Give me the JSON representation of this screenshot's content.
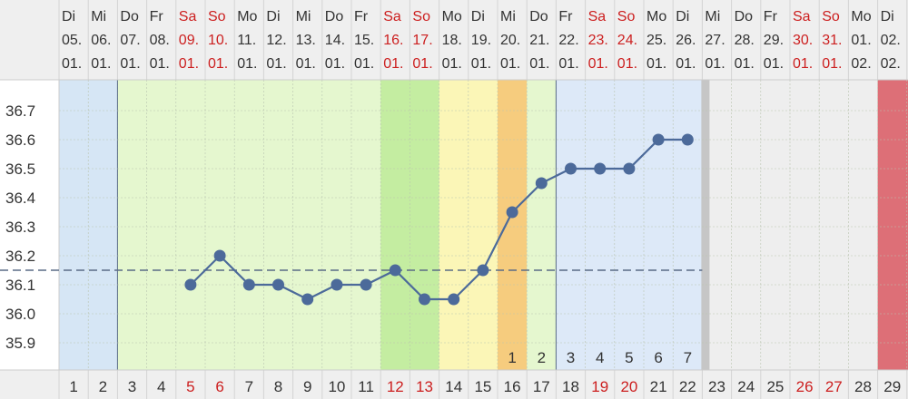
{
  "chart_data": {
    "type": "line",
    "title": "",
    "xlabel": "",
    "ylabel": "",
    "ylim": [
      35.8,
      36.85
    ],
    "yticks": [
      "36.7",
      "36.6",
      "36.5",
      "36.4",
      "36.3",
      "36.2",
      "36.1",
      "36.0",
      "35.9"
    ],
    "coverline": 36.15,
    "grid": true,
    "days": [
      {
        "wd": "Di",
        "d": "05.",
        "m": "01.",
        "cd": "1",
        "weekend": false,
        "phase": "period"
      },
      {
        "wd": "Mi",
        "d": "06.",
        "m": "01.",
        "cd": "2",
        "weekend": false,
        "phase": "period"
      },
      {
        "wd": "Do",
        "d": "07.",
        "m": "01.",
        "cd": "3",
        "weekend": false,
        "phase": "fertile-low"
      },
      {
        "wd": "Fr",
        "d": "08.",
        "m": "01.",
        "cd": "4",
        "weekend": false,
        "phase": "fertile-low"
      },
      {
        "wd": "Sa",
        "d": "09.",
        "m": "01.",
        "cd": "5",
        "weekend": true,
        "phase": "fertile-low"
      },
      {
        "wd": "So",
        "d": "10.",
        "m": "01.",
        "cd": "6",
        "weekend": true,
        "phase": "fertile-low"
      },
      {
        "wd": "Mo",
        "d": "11.",
        "m": "01.",
        "cd": "7",
        "weekend": false,
        "phase": "fertile-low"
      },
      {
        "wd": "Di",
        "d": "12.",
        "m": "01.",
        "cd": "8",
        "weekend": false,
        "phase": "fertile-low"
      },
      {
        "wd": "Mi",
        "d": "13.",
        "m": "01.",
        "cd": "9",
        "weekend": false,
        "phase": "fertile-low"
      },
      {
        "wd": "Do",
        "d": "14.",
        "m": "01.",
        "cd": "10",
        "weekend": false,
        "phase": "fertile-low"
      },
      {
        "wd": "Fr",
        "d": "15.",
        "m": "01.",
        "cd": "11",
        "weekend": false,
        "phase": "fertile-low"
      },
      {
        "wd": "Sa",
        "d": "16.",
        "m": "01.",
        "cd": "12",
        "weekend": true,
        "phase": "fertile-high"
      },
      {
        "wd": "So",
        "d": "17.",
        "m": "01.",
        "cd": "13",
        "weekend": true,
        "phase": "fertile-high"
      },
      {
        "wd": "Mo",
        "d": "18.",
        "m": "01.",
        "cd": "14",
        "weekend": false,
        "phase": "fertile-peak"
      },
      {
        "wd": "Di",
        "d": "19.",
        "m": "01.",
        "cd": "15",
        "weekend": false,
        "phase": "fertile-peak"
      },
      {
        "wd": "Mi",
        "d": "20.",
        "m": "01.",
        "cd": "16",
        "weekend": false,
        "phase": "ovulation"
      },
      {
        "wd": "Do",
        "d": "21.",
        "m": "01.",
        "cd": "17",
        "weekend": false,
        "phase": "fertile-low"
      },
      {
        "wd": "Fr",
        "d": "22.",
        "m": "01.",
        "cd": "18",
        "weekend": false,
        "phase": "luteal"
      },
      {
        "wd": "Sa",
        "d": "23.",
        "m": "01.",
        "cd": "19",
        "weekend": true,
        "phase": "luteal"
      },
      {
        "wd": "So",
        "d": "24.",
        "m": "01.",
        "cd": "20",
        "weekend": true,
        "phase": "luteal"
      },
      {
        "wd": "Mo",
        "d": "25.",
        "m": "01.",
        "cd": "21",
        "weekend": false,
        "phase": "luteal"
      },
      {
        "wd": "Di",
        "d": "26.",
        "m": "01.",
        "cd": "22",
        "weekend": false,
        "phase": "luteal"
      },
      {
        "wd": "Mi",
        "d": "27.",
        "m": "01.",
        "cd": "23",
        "weekend": false,
        "phase": "future"
      },
      {
        "wd": "Do",
        "d": "28.",
        "m": "01.",
        "cd": "24",
        "weekend": false,
        "phase": "future"
      },
      {
        "wd": "Fr",
        "d": "29.",
        "m": "01.",
        "cd": "25",
        "weekend": false,
        "phase": "future"
      },
      {
        "wd": "Sa",
        "d": "30.",
        "m": "01.",
        "cd": "26",
        "weekend": true,
        "phase": "future"
      },
      {
        "wd": "So",
        "d": "31.",
        "m": "01.",
        "cd": "27",
        "weekend": true,
        "phase": "future"
      },
      {
        "wd": "Mo",
        "d": "01.",
        "m": "02.",
        "cd": "28",
        "weekend": false,
        "phase": "future"
      },
      {
        "wd": "Di",
        "d": "02.",
        "m": "02.",
        "cd": "29",
        "weekend": false,
        "phase": "next-period"
      },
      {
        "wd": "",
        "d": "",
        "m": "",
        "cd": "",
        "weekend": false,
        "phase": "next-period"
      }
    ],
    "series": [
      {
        "values": [
          null,
          null,
          null,
          null,
          36.1,
          36.2,
          36.1,
          36.1,
          36.05,
          36.1,
          36.1,
          36.15,
          36.05,
          36.05,
          36.15,
          36.35,
          36.45,
          36.5,
          36.5,
          36.5,
          36.6,
          36.6
        ]
      }
    ],
    "post_ovulation_counts": [
      {
        "day": 16,
        "label": "1"
      },
      {
        "day": 17,
        "label": "2"
      },
      {
        "day": 18,
        "label": "3"
      },
      {
        "day": 19,
        "label": "4"
      },
      {
        "day": 20,
        "label": "5"
      },
      {
        "day": 21,
        "label": "6"
      },
      {
        "day": 22,
        "label": "7"
      }
    ],
    "colors": {
      "period": "#d6e6f5",
      "fertile-low": "#e5f7cf",
      "fertile-high": "#c4eda1",
      "fertile-peak": "#fbf6b7",
      "ovulation": "#f6cc7e",
      "luteal": "#dde9f8",
      "future": "#eeeeee",
      "next-period": "#dd6f77",
      "header": "#efefef",
      "line": "#4c6a9a",
      "weekend_text": "#cc1f1f",
      "text": "#333333"
    }
  }
}
